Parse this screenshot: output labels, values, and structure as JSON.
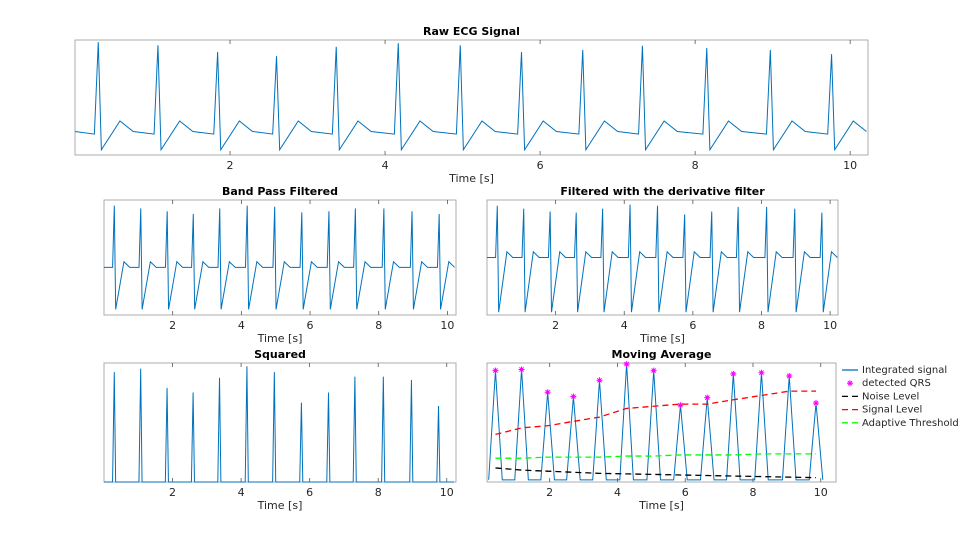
{
  "chart_data": [
    {
      "type": "line",
      "title": "Raw ECG Signal",
      "xlabel": "Time [s]",
      "color": "#0072bd",
      "xlim": [
        0,
        10.23
      ],
      "xticks": [
        2,
        4,
        6,
        8,
        10
      ],
      "ylim": [
        -0.4,
        1.8
      ],
      "x": [
        0,
        0.25,
        0.3,
        0.34,
        0.58,
        0.75,
        1.02,
        1.07,
        1.11,
        1.35,
        1.52,
        1.79,
        1.84,
        1.88,
        2.12,
        2.29,
        2.55,
        2.6,
        2.64,
        2.88,
        3.05,
        3.32,
        3.37,
        3.41,
        3.65,
        3.82,
        4.12,
        4.17,
        4.21,
        4.45,
        4.62,
        4.92,
        4.97,
        5.01,
        5.25,
        5.42,
        5.71,
        5.76,
        5.8,
        6.04,
        6.21,
        6.5,
        6.55,
        6.59,
        6.83,
        7.0,
        7.27,
        7.32,
        7.36,
        7.6,
        7.77,
        8.1,
        8.15,
        8.19,
        8.43,
        8.6,
        8.92,
        8.97,
        9.01,
        9.25,
        9.42,
        9.71,
        9.76,
        9.8,
        10.04,
        10.21
      ],
      "values": [
        0.05,
        0,
        1.76,
        -0.3,
        0.25,
        0.05,
        0,
        1.7,
        -0.3,
        0.25,
        0.05,
        0,
        1.57,
        -0.3,
        0.25,
        0.05,
        0,
        1.49,
        -0.3,
        0.25,
        0.05,
        0,
        1.67,
        -0.3,
        0.25,
        0.05,
        0,
        1.74,
        -0.3,
        0.25,
        0.05,
        0,
        1.7,
        -0.3,
        0.25,
        0.05,
        0,
        1.57,
        -0.3,
        0.25,
        0.05,
        0,
        1.61,
        -0.3,
        0.25,
        0.05,
        0,
        1.69,
        -0.3,
        0.25,
        0.05,
        0,
        1.65,
        -0.3,
        0.25,
        0.05,
        0,
        1.61,
        -0.3,
        0.25,
        0.05,
        0,
        1.53,
        -0.3,
        0.25,
        0.05
      ]
    },
    {
      "type": "line",
      "title": "Band Pass Filtered",
      "xlabel": "Time [s]",
      "color": "#0072bd",
      "xlim": [
        0,
        10.25
      ],
      "xticks": [
        2,
        4,
        6,
        8,
        10
      ],
      "ylim": [
        -0.85,
        1.2
      ],
      "x": [
        0,
        0.25,
        0.3,
        0.34,
        0.58,
        0.75,
        1.02,
        1.07,
        1.11,
        1.35,
        1.52,
        1.79,
        1.84,
        1.88,
        2.12,
        2.29,
        2.55,
        2.6,
        2.64,
        2.88,
        3.05,
        3.32,
        3.37,
        3.41,
        3.65,
        3.82,
        4.12,
        4.17,
        4.21,
        4.45,
        4.62,
        4.92,
        4.97,
        5.01,
        5.25,
        5.42,
        5.71,
        5.76,
        5.8,
        6.04,
        6.21,
        6.5,
        6.55,
        6.59,
        6.83,
        7.0,
        7.27,
        7.32,
        7.36,
        7.6,
        7.77,
        8.1,
        8.15,
        8.19,
        8.43,
        8.6,
        8.92,
        8.97,
        9.01,
        9.25,
        9.42,
        9.71,
        9.76,
        9.8,
        10.04,
        10.21
      ],
      "values": [
        0,
        0,
        1.1,
        -0.75,
        0.1,
        0,
        0,
        1.05,
        -0.75,
        0.1,
        0,
        0,
        1.0,
        -0.75,
        0.1,
        0,
        0,
        0.95,
        -0.75,
        0.1,
        0,
        0,
        1.05,
        -0.75,
        0.1,
        0,
        0,
        1.1,
        -0.75,
        0.1,
        0,
        0,
        1.08,
        -0.75,
        0.1,
        0,
        0,
        0.98,
        -0.75,
        0.1,
        0,
        0,
        1.0,
        -0.75,
        0.1,
        0,
        0,
        1.05,
        -0.75,
        0.1,
        0,
        0,
        1.05,
        -0.75,
        0.1,
        0,
        0,
        1.0,
        -0.75,
        0.1,
        0,
        0,
        0.95,
        -0.75,
        0.1,
        0
      ]
    },
    {
      "type": "line",
      "title": "Filtered with the derivative filter",
      "xlabel": "Time [s]",
      "color": "#0072bd",
      "xlim": [
        0,
        10.23
      ],
      "xticks": [
        2,
        4,
        6,
        8,
        10
      ],
      "ylim": [
        -1,
        1
      ],
      "x": [
        0,
        0.25,
        0.3,
        0.34,
        0.58,
        0.75,
        1.02,
        1.07,
        1.11,
        1.35,
        1.52,
        1.79,
        1.84,
        1.88,
        2.12,
        2.29,
        2.55,
        2.6,
        2.64,
        2.88,
        3.05,
        3.32,
        3.37,
        3.41,
        3.65,
        3.82,
        4.12,
        4.17,
        4.21,
        4.45,
        4.62,
        4.92,
        4.97,
        5.01,
        5.25,
        5.42,
        5.71,
        5.76,
        5.8,
        6.04,
        6.21,
        6.5,
        6.55,
        6.59,
        6.83,
        7.0,
        7.27,
        7.32,
        7.36,
        7.6,
        7.77,
        8.1,
        8.15,
        8.19,
        8.43,
        8.6,
        8.92,
        8.97,
        9.01,
        9.25,
        9.42,
        9.71,
        9.76,
        9.8,
        10.04,
        10.21
      ],
      "values": [
        0,
        0,
        0.9,
        -0.95,
        0.1,
        0,
        0,
        0.85,
        -0.95,
        0.1,
        0,
        0,
        0.8,
        -0.95,
        0.1,
        0,
        0,
        0.78,
        -0.95,
        0.1,
        0,
        0,
        0.85,
        -0.95,
        0.1,
        0,
        0,
        0.92,
        -0.95,
        0.1,
        0,
        0,
        0.9,
        -0.95,
        0.1,
        0,
        0,
        0.75,
        -0.95,
        0.1,
        0,
        0,
        0.8,
        -0.95,
        0.1,
        0,
        0,
        0.88,
        -0.95,
        0.1,
        0,
        0,
        0.88,
        -0.95,
        0.1,
        0,
        0,
        0.85,
        -0.95,
        0.1,
        0,
        0,
        0.78,
        -0.95,
        0.1,
        0
      ]
    },
    {
      "type": "line",
      "title": "Squared",
      "xlabel": "Time [s]",
      "color": "#0072bd",
      "xlim": [
        0,
        10.27
      ],
      "xticks": [
        2,
        4,
        6,
        8,
        10
      ],
      "ylim": [
        0,
        1.05
      ],
      "x": [
        0,
        0.25,
        0.3,
        0.34,
        0.58,
        0.75,
        1.02,
        1.07,
        1.11,
        1.35,
        1.52,
        1.79,
        1.84,
        1.88,
        2.12,
        2.29,
        2.55,
        2.6,
        2.64,
        2.88,
        3.05,
        3.32,
        3.37,
        3.41,
        3.65,
        3.82,
        4.12,
        4.17,
        4.21,
        4.45,
        4.62,
        4.92,
        4.97,
        5.01,
        5.25,
        5.42,
        5.71,
        5.76,
        5.8,
        6.04,
        6.21,
        6.5,
        6.55,
        6.59,
        6.83,
        7.0,
        7.27,
        7.32,
        7.36,
        7.6,
        7.77,
        8.1,
        8.15,
        8.19,
        8.43,
        8.6,
        8.92,
        8.97,
        9.01,
        9.25,
        9.42,
        9.71,
        9.76,
        9.8,
        10.04,
        10.21
      ],
      "values": [
        0,
        0,
        0.97,
        0,
        0,
        0,
        0,
        1.0,
        0,
        0,
        0,
        0,
        0.83,
        0,
        0,
        0,
        0,
        0.79,
        0,
        0,
        0,
        0,
        0.92,
        0,
        0,
        0,
        0,
        1.02,
        0,
        0,
        0,
        0,
        0.97,
        0,
        0,
        0,
        0,
        0.7,
        0,
        0,
        0,
        0,
        0.79,
        0,
        0,
        0,
        0,
        0.93,
        0,
        0,
        0,
        0,
        0.93,
        0,
        0,
        0,
        0,
        0.9,
        0,
        0,
        0,
        0,
        0.67,
        0,
        0,
        0
      ]
    },
    {
      "type": "line",
      "title": "Moving Average",
      "xlabel": "Time [s]",
      "xlim": [
        0.15,
        10.45
      ],
      "xticks": [
        2,
        4,
        6,
        8,
        10
      ],
      "ylim": [
        0,
        1.1
      ],
      "legend": "right",
      "series": [
        {
          "name": "Integrated signal",
          "color": "#0072bd",
          "line_style": "solid",
          "x": [
            0.2,
            0.4,
            0.6,
            0.97,
            1.17,
            1.37,
            1.74,
            1.94,
            2.14,
            2.5,
            2.7,
            2.9,
            3.27,
            3.47,
            3.67,
            4.07,
            4.27,
            4.47,
            4.87,
            5.07,
            5.27,
            5.66,
            5.86,
            6.06,
            6.45,
            6.65,
            6.85,
            7.22,
            7.42,
            7.62,
            8.05,
            8.25,
            8.45,
            8.87,
            9.07,
            9.27,
            9.66,
            9.86,
            10.06
          ],
          "values": [
            0.02,
            1.03,
            0.02,
            0.02,
            1.04,
            0.02,
            0.02,
            0.83,
            0.02,
            0.02,
            0.79,
            0.02,
            0.02,
            0.94,
            0.02,
            0.02,
            1.09,
            0.02,
            0.02,
            1.03,
            0.02,
            0.02,
            0.71,
            0.02,
            0.02,
            0.78,
            0.02,
            0.02,
            1.0,
            0.02,
            0.02,
            1.01,
            0.02,
            0.02,
            0.98,
            0.02,
            0.02,
            0.73,
            0.02
          ]
        },
        {
          "name": "detected QRS",
          "color": "#ff00ff",
          "marker": "star",
          "x": [
            0.4,
            1.17,
            1.94,
            2.7,
            3.47,
            4.27,
            5.07,
            5.86,
            6.65,
            7.42,
            8.25,
            9.07,
            9.86
          ],
          "values": [
            1.03,
            1.04,
            0.83,
            0.79,
            0.94,
            1.09,
            1.03,
            0.71,
            0.78,
            1.0,
            1.01,
            0.98,
            0.73
          ]
        },
        {
          "name": "Noise Level",
          "color": "#000000",
          "line_style": "dashed",
          "x": [
            0.4,
            1.17,
            1.94,
            2.7,
            3.47,
            4.27,
            5.07,
            5.86,
            6.65,
            7.42,
            8.25,
            9.07,
            9.86
          ],
          "values": [
            0.13,
            0.11,
            0.1,
            0.09,
            0.08,
            0.075,
            0.07,
            0.065,
            0.06,
            0.055,
            0.05,
            0.045,
            0.04
          ]
        },
        {
          "name": "Signal Level",
          "color": "#ff0000",
          "line_style": "dashed",
          "x": [
            0.4,
            1.17,
            1.94,
            2.7,
            3.47,
            4.27,
            5.07,
            5.86,
            6.65,
            7.42,
            8.25,
            9.07,
            9.86
          ],
          "values": [
            0.44,
            0.5,
            0.52,
            0.56,
            0.6,
            0.68,
            0.7,
            0.72,
            0.72,
            0.76,
            0.8,
            0.84,
            0.84
          ]
        },
        {
          "name": "Adaptive Threshold",
          "color": "#00ff00",
          "line_style": "dashed",
          "x": [
            0.4,
            1.17,
            1.94,
            2.7,
            3.47,
            4.27,
            5.07,
            5.86,
            6.65,
            7.42,
            8.25,
            9.07,
            9.86
          ],
          "values": [
            0.22,
            0.22,
            0.23,
            0.23,
            0.23,
            0.24,
            0.24,
            0.25,
            0.25,
            0.25,
            0.26,
            0.26,
            0.26
          ]
        }
      ]
    }
  ]
}
